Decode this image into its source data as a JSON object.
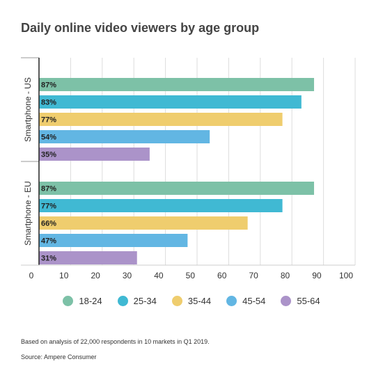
{
  "chart_data": {
    "type": "bar",
    "orientation": "horizontal",
    "title": "Daily online video viewers by age group",
    "groups": [
      {
        "name": "Smartphone - US",
        "values": [
          87,
          83,
          77,
          54,
          35
        ],
        "labels": [
          "87%",
          "83%",
          "77%",
          "54%",
          "35%"
        ]
      },
      {
        "name": "Smartphone - EU",
        "values": [
          87,
          77,
          66,
          47,
          31
        ],
        "labels": [
          "87%",
          "77%",
          "66%",
          "47%",
          "31%"
        ]
      }
    ],
    "series": [
      {
        "name": "18-24",
        "color": "#7dc1a7"
      },
      {
        "name": "25-34",
        "color": "#40b9d3"
      },
      {
        "name": "35-44",
        "color": "#efcd6e"
      },
      {
        "name": "45-54",
        "color": "#62b6e3"
      },
      {
        "name": "55-64",
        "color": "#ab93c9"
      }
    ],
    "xlim": [
      0,
      100
    ],
    "xticks": [
      0,
      10,
      20,
      30,
      40,
      50,
      60,
      70,
      80,
      90,
      100
    ],
    "grid": true,
    "legend_position": "bottom"
  },
  "footnote": "Based on analysis of 22,000 respondents in 10 markets in Q1 2019.",
  "source": "Source: Ampere Consumer"
}
